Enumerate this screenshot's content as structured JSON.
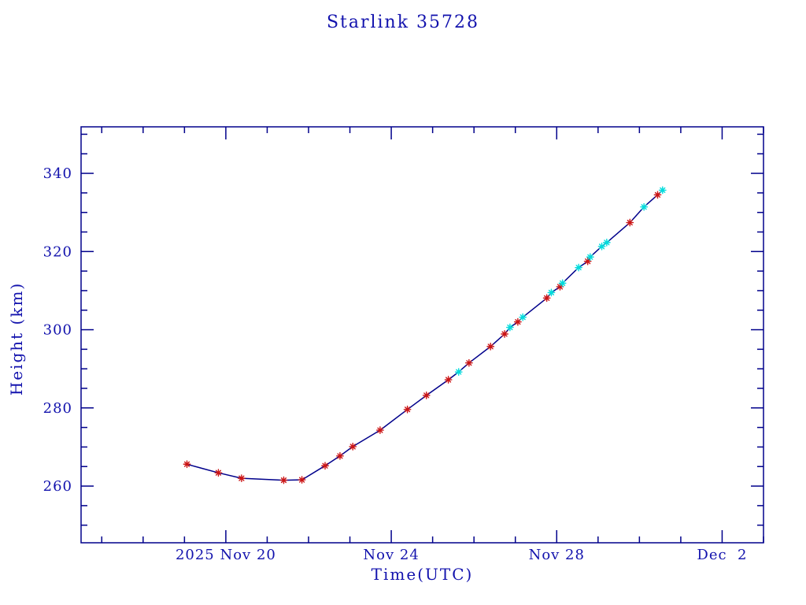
{
  "page": {
    "background": "#ffffff"
  },
  "chart_data": {
    "type": "line",
    "title": "Starlink 35728",
    "xlabel": "Time(UTC)",
    "ylabel": "Height (km)",
    "x_unit": "day of November 2025, UTC (32 = Dec 2)",
    "xlim": [
      16.5,
      33.0
    ],
    "ylim": [
      245.5,
      351.9
    ],
    "grid": false,
    "legend": "none",
    "axis_color": "#00008B",
    "line_color": "#00008B",
    "text_color": "#1212AD",
    "marker": "asterisk",
    "marker_colors": {
      "red": "#CC1515",
      "cyan": "#00DCDC"
    },
    "x_major_ticks": [
      {
        "day": 20,
        "label": "2025 Nov 20"
      },
      {
        "day": 24,
        "label": "Nov 24"
      },
      {
        "day": 28,
        "label": "Nov 28"
      },
      {
        "day": 32,
        "label": "Dec  2"
      }
    ],
    "x_minor_tick_step_days": 1,
    "y_major_ticks": [
      260,
      280,
      300,
      320,
      340
    ],
    "y_minor_tick_step": 5,
    "points": [
      {
        "day": 19.06,
        "height": 265.6,
        "set": "red"
      },
      {
        "day": 19.82,
        "height": 263.4,
        "set": "red"
      },
      {
        "day": 20.38,
        "height": 262.0,
        "set": "red"
      },
      {
        "day": 21.4,
        "height": 261.5,
        "set": "red"
      },
      {
        "day": 21.84,
        "height": 261.6,
        "set": "red"
      },
      {
        "day": 22.4,
        "height": 265.2,
        "set": "red"
      },
      {
        "day": 22.76,
        "height": 267.7,
        "set": "red"
      },
      {
        "day": 23.07,
        "height": 270.1,
        "set": "red"
      },
      {
        "day": 23.73,
        "height": 274.3,
        "set": "red"
      },
      {
        "day": 24.39,
        "height": 279.6,
        "set": "red"
      },
      {
        "day": 24.85,
        "height": 283.2,
        "set": "red"
      },
      {
        "day": 25.38,
        "height": 287.2,
        "set": "red"
      },
      {
        "day": 25.63,
        "height": 289.2,
        "set": "cyan"
      },
      {
        "day": 25.88,
        "height": 291.5,
        "set": "red"
      },
      {
        "day": 26.4,
        "height": 295.7,
        "set": "red"
      },
      {
        "day": 26.74,
        "height": 298.9,
        "set": "red"
      },
      {
        "day": 26.87,
        "height": 300.6,
        "set": "cyan"
      },
      {
        "day": 27.06,
        "height": 302.0,
        "set": "red"
      },
      {
        "day": 27.18,
        "height": 303.2,
        "set": "cyan"
      },
      {
        "day": 27.76,
        "height": 308.1,
        "set": "red"
      },
      {
        "day": 27.87,
        "height": 309.5,
        "set": "cyan"
      },
      {
        "day": 28.08,
        "height": 311.0,
        "set": "red"
      },
      {
        "day": 28.14,
        "height": 311.9,
        "set": "cyan"
      },
      {
        "day": 28.53,
        "height": 315.9,
        "set": "cyan"
      },
      {
        "day": 28.75,
        "height": 317.5,
        "set": "red"
      },
      {
        "day": 28.81,
        "height": 318.6,
        "set": "cyan"
      },
      {
        "day": 29.09,
        "height": 321.3,
        "set": "cyan"
      },
      {
        "day": 29.21,
        "height": 322.3,
        "set": "cyan"
      },
      {
        "day": 29.77,
        "height": 327.4,
        "set": "red"
      },
      {
        "day": 30.11,
        "height": 331.4,
        "set": "cyan"
      },
      {
        "day": 30.44,
        "height": 334.5,
        "set": "red"
      },
      {
        "day": 30.56,
        "height": 335.7,
        "set": "cyan"
      }
    ]
  }
}
